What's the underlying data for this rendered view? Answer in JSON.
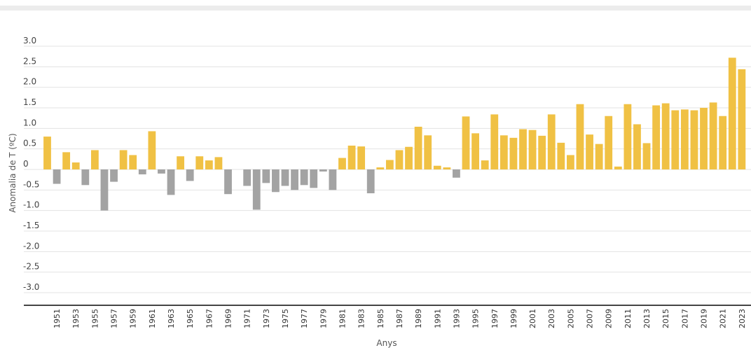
{
  "chart_data": {
    "type": "bar",
    "title": "",
    "xlabel": "Anys",
    "ylabel": "Anomalia de T (ºC)",
    "ylim": [
      -3.0,
      3.0
    ],
    "grid": true,
    "ytick_labels": [
      "3.0",
      "2.5",
      "2.0",
      "1.5",
      "1.0",
      "0.5",
      "0",
      "-0.5",
      "-1.0",
      "-1.5",
      "-2.0",
      "-2.5",
      "-3.0"
    ],
    "ytick_values": [
      3.0,
      2.5,
      2.0,
      1.5,
      1.0,
      0.5,
      0,
      -0.5,
      -1.0,
      -1.5,
      -2.0,
      -2.5,
      -3.0
    ],
    "colors": {
      "positive": "#f0c144",
      "negative": "#a3a3a3"
    },
    "x": [
      1950,
      1951,
      1952,
      1953,
      1954,
      1955,
      1956,
      1957,
      1958,
      1959,
      1960,
      1961,
      1962,
      1963,
      1964,
      1965,
      1966,
      1967,
      1968,
      1969,
      1970,
      1971,
      1972,
      1973,
      1974,
      1975,
      1976,
      1977,
      1978,
      1979,
      1980,
      1981,
      1982,
      1983,
      1984,
      1985,
      1986,
      1987,
      1988,
      1989,
      1990,
      1991,
      1992,
      1993,
      1994,
      1995,
      1996,
      1997,
      1998,
      1999,
      2000,
      2001,
      2002,
      2003,
      2004,
      2005,
      2006,
      2007,
      2008,
      2009,
      2010,
      2011,
      2012,
      2013,
      2014,
      2015,
      2016,
      2017,
      2018,
      2019,
      2020,
      2021,
      2022,
      2023
    ],
    "values": [
      0.8,
      -0.35,
      0.42,
      0.17,
      -0.38,
      0.47,
      -1.0,
      -0.3,
      0.47,
      0.35,
      -0.12,
      0.93,
      -0.1,
      -0.62,
      0.32,
      -0.28,
      0.32,
      0.22,
      0.3,
      -0.6,
      0,
      -0.4,
      -0.98,
      -0.33,
      -0.55,
      -0.4,
      -0.5,
      -0.38,
      -0.45,
      -0.05,
      -0.5,
      0.28,
      0.58,
      0.56,
      -0.58,
      0.05,
      0.23,
      0.47,
      0.55,
      1.04,
      0.83,
      0.09,
      0.05,
      -0.2,
      1.29,
      0.88,
      0.22,
      1.34,
      0.83,
      0.77,
      0.98,
      0.96,
      0.82,
      1.34,
      0.65,
      0.35,
      1.59,
      0.85,
      0.62,
      1.3,
      0.07,
      1.59,
      1.1,
      0.64,
      1.56,
      1.61,
      1.44,
      1.46,
      1.44,
      1.5,
      1.63,
      1.3,
      2.72,
      2.44
    ],
    "x_tick_labels": [
      "1951",
      "1953",
      "1955",
      "1957",
      "1959",
      "1961",
      "1963",
      "1965",
      "1967",
      "1969",
      "1971",
      "1973",
      "1975",
      "1977",
      "1979",
      "1981",
      "1983",
      "1985",
      "1987",
      "1989",
      "1991",
      "1993",
      "1995",
      "1997",
      "1999",
      "2001",
      "2003",
      "2005",
      "2007",
      "2009",
      "2011",
      "2013",
      "2015",
      "2017",
      "2019",
      "2021",
      "2023"
    ]
  }
}
